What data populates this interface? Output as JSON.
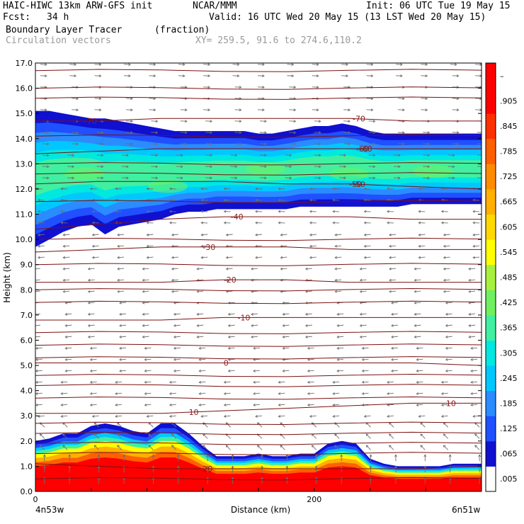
{
  "header": {
    "model": "HAIC-HIWC 13km ARW-GFS init",
    "org": "NCAR/MMM",
    "init": "Init: 06 UTC Tue 19 May 15",
    "fcst_label": "Fcst:",
    "fcst_value": "34 h",
    "valid": "Valid: 16 UTC Wed 20 May 15 (13 LST Wed 20 May 15)",
    "field": "Boundary Layer Tracer",
    "field_units": "(fraction)",
    "overlay": "Circulation vectors",
    "xy": "XY= 259.5, 91.6 to 274.6,110.2"
  },
  "chart_data": {
    "type": "heatmap",
    "title": "Boundary Layer Tracer",
    "units": "(fraction)",
    "xlabel": "Distance (km)",
    "ylabel": "Height (km)",
    "xlim": [
      0,
      320
    ],
    "ylim": [
      0,
      17
    ],
    "x_ticks": [
      0,
      200
    ],
    "y_ticks": [
      "0.0",
      "1.0",
      "2.0",
      "3.0",
      "4.0",
      "5.0",
      "6.0",
      "7.0",
      "8.0",
      "9.0",
      "10.0",
      "11.0",
      "12.0",
      "13.0",
      "14.0",
      "15.0",
      "16.0",
      "17.0"
    ],
    "x_endpoints": [
      "4n53w",
      "6n51w"
    ],
    "colorbar": {
      "labels": [
        ".005",
        ".065",
        ".125",
        ".185",
        ".245",
        ".305",
        ".365",
        ".425",
        ".485",
        ".545",
        ".605",
        ".665",
        ".725",
        ".785",
        ".845",
        ".905",
        "–"
      ],
      "colors": [
        "#ffffff",
        "#1010d0",
        "#2050ff",
        "#2a8cff",
        "#00c8ff",
        "#00e8e0",
        "#40f0a0",
        "#70f060",
        "#a8f040",
        "#ffff00",
        "#ffd800",
        "#ffb000",
        "#ff8c00",
        "#ff6000",
        "#ff3000",
        "#ff0000",
        "#ff0000"
      ]
    },
    "tracer_layers": {
      "x": [
        0,
        10,
        20,
        30,
        40,
        50,
        60,
        70,
        80,
        90,
        100,
        110,
        120,
        130,
        140,
        150,
        160,
        170,
        180,
        190,
        200,
        210,
        220,
        230,
        240,
        250,
        260,
        270,
        280,
        290,
        300,
        310,
        320
      ],
      "surface_top": [
        2.0,
        2.1,
        2.3,
        2.3,
        2.6,
        2.7,
        2.6,
        2.4,
        2.3,
        2.7,
        2.7,
        2.3,
        1.8,
        1.4,
        1.4,
        1.4,
        1.5,
        1.4,
        1.4,
        1.5,
        1.5,
        1.9,
        2.0,
        1.9,
        1.3,
        1.1,
        1.0,
        1.0,
        1.0,
        1.0,
        1.1,
        1.1,
        1.1
      ],
      "aloft_bottom": [
        9.7,
        10.0,
        10.3,
        10.5,
        10.6,
        10.2,
        10.5,
        10.6,
        10.7,
        10.8,
        11.0,
        11.1,
        11.1,
        11.2,
        11.2,
        11.2,
        11.2,
        11.2,
        11.2,
        11.3,
        11.3,
        11.3,
        11.3,
        11.3,
        11.3,
        11.3,
        11.3,
        11.4,
        11.4,
        11.4,
        11.4,
        11.4,
        11.4
      ],
      "aloft_top": [
        15.1,
        15.1,
        15.0,
        14.9,
        14.8,
        14.8,
        14.7,
        14.6,
        14.5,
        14.4,
        14.3,
        14.3,
        14.3,
        14.3,
        14.3,
        14.3,
        14.2,
        14.2,
        14.3,
        14.4,
        14.5,
        14.5,
        14.6,
        14.5,
        14.3,
        14.2,
        14.2,
        14.2,
        14.2,
        14.2,
        14.2,
        14.2,
        14.2
      ]
    },
    "temperature_contours": [
      {
        "label": "-70",
        "heights": [
          14.7,
          14.7,
          14.8,
          14.8,
          14.8,
          14.8,
          14.7,
          14.7
        ]
      },
      {
        "label": "-60",
        "heights": [
          13.4,
          13.5,
          13.6,
          13.6,
          13.6,
          13.6,
          13.6,
          13.6
        ]
      },
      {
        "label": "-50",
        "heights": [
          12.2,
          12.3,
          12.3,
          12.3,
          12.2,
          12.2,
          12.1,
          12.0
        ]
      },
      {
        "label": "-40",
        "heights": [
          10.4,
          10.6,
          10.8,
          10.9,
          10.9,
          10.9,
          10.8,
          10.8
        ]
      },
      {
        "label": "-30",
        "heights": [
          9.5,
          9.6,
          9.7,
          9.7,
          9.7,
          9.6,
          9.6,
          9.6
        ]
      },
      {
        "label": "-20",
        "heights": [
          8.3,
          8.3,
          8.3,
          8.4,
          8.4,
          8.3,
          8.3,
          8.3
        ]
      },
      {
        "label": "-10",
        "heights": [
          6.8,
          6.8,
          6.8,
          6.9,
          6.9,
          6.9,
          6.9,
          6.9
        ]
      },
      {
        "label": "0",
        "heights": [
          5.1,
          5.1,
          5.1,
          5.1,
          5.1,
          5.1,
          5.1,
          5.0
        ]
      },
      {
        "label": "10",
        "heights": [
          3.1,
          3.1,
          3.1,
          3.2,
          3.3,
          3.4,
          3.5,
          3.5
        ]
      },
      {
        "label": "20",
        "heights": [
          1.1,
          1.0,
          0.9,
          0.9,
          0.9,
          0.9,
          0.9,
          1.0
        ]
      }
    ],
    "contour_x": [
      0,
      45,
      90,
      135,
      180,
      225,
      270,
      320
    ],
    "contour_levels_unlabeled": [
      16.7,
      16.0,
      15.6,
      14.1,
      13.0,
      12.6,
      11.5,
      10.0,
      9.0,
      8.0,
      7.5,
      6.3,
      5.8,
      5.3,
      4.6,
      4.2,
      3.7,
      2.7,
      2.3,
      1.9,
      1.5,
      0.5
    ],
    "vectors": {
      "upper_direction": "east",
      "mid_direction": "west",
      "lower_direction": "west-southwest",
      "surface_direction": "north"
    }
  }
}
